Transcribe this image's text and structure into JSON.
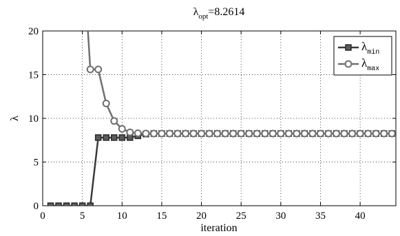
{
  "chart_data": {
    "type": "line",
    "title": {
      "symbol": "λ",
      "subscript": "opt",
      "value_text": "=8.2614"
    },
    "xlabel": "iteration",
    "ylabel": "λ",
    "xlim": [
      0,
      44.5
    ],
    "ylim": [
      0,
      20
    ],
    "xticks": [
      0,
      5,
      10,
      15,
      20,
      25,
      30,
      35,
      40
    ],
    "yticks": [
      0,
      5,
      10,
      15,
      20
    ],
    "grid": true,
    "legend_position": "top-right",
    "series": [
      {
        "name_symbol": "λ",
        "name_subscript": "min",
        "marker": "square",
        "color": "#3a3a3a",
        "x": [
          1,
          2,
          3,
          4,
          5,
          6,
          7,
          8,
          9,
          10,
          11,
          12,
          13,
          14,
          15,
          16,
          17,
          18,
          19,
          20,
          21,
          22,
          23,
          24,
          25,
          26,
          27,
          28,
          29,
          30,
          31,
          32,
          33,
          34,
          35,
          36,
          37,
          38,
          39,
          40,
          41,
          42,
          43,
          44
        ],
        "y": [
          0,
          0,
          0,
          0,
          0,
          0,
          7.8,
          7.8,
          7.8,
          7.8,
          7.8,
          8.0,
          8.2,
          8.26,
          8.26,
          8.26,
          8.26,
          8.26,
          8.26,
          8.26,
          8.26,
          8.26,
          8.26,
          8.26,
          8.26,
          8.26,
          8.26,
          8.26,
          8.26,
          8.26,
          8.26,
          8.26,
          8.26,
          8.26,
          8.26,
          8.26,
          8.26,
          8.26,
          8.26,
          8.26,
          8.26,
          8.26,
          8.26,
          8.26
        ]
      },
      {
        "name_symbol": "λ",
        "name_subscript": "max",
        "marker": "circle",
        "color": "#6f6f6f",
        "x": [
          5.7,
          6,
          7,
          8,
          9,
          10,
          11,
          12,
          13,
          14,
          15,
          16,
          17,
          18,
          19,
          20,
          21,
          22,
          23,
          24,
          25,
          26,
          27,
          28,
          29,
          30,
          31,
          32,
          33,
          34,
          35,
          36,
          37,
          38,
          39,
          40,
          41,
          42,
          43,
          44
        ],
        "y": [
          20,
          15.6,
          15.6,
          11.7,
          9.7,
          8.8,
          8.4,
          8.3,
          8.27,
          8.26,
          8.26,
          8.26,
          8.26,
          8.26,
          8.26,
          8.26,
          8.26,
          8.26,
          8.26,
          8.26,
          8.26,
          8.26,
          8.26,
          8.26,
          8.26,
          8.26,
          8.26,
          8.26,
          8.26,
          8.26,
          8.26,
          8.26,
          8.26,
          8.26,
          8.26,
          8.26,
          8.26,
          8.26,
          8.26,
          8.26
        ],
        "marker_start_index": 1
      }
    ]
  }
}
